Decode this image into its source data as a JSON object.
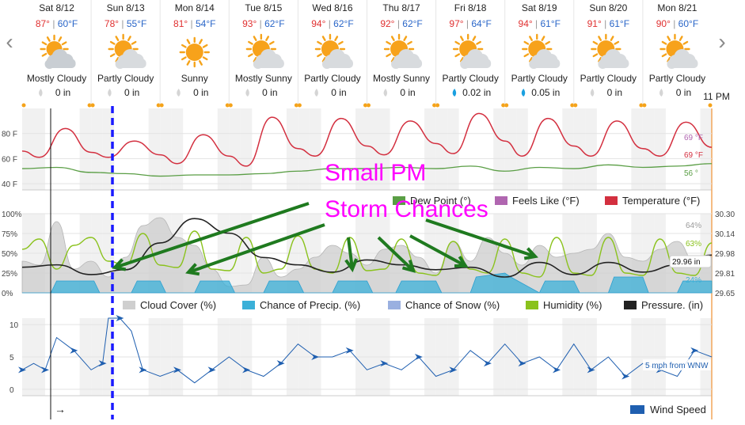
{
  "nav": {
    "prev_glyph": "‹",
    "next_glyph": "›"
  },
  "days": [
    {
      "date": "Sat 8/12",
      "hi": "87°",
      "lo": "60°F",
      "icon": "mostly-cloudy-icon",
      "cond": "Mostly Cloudy",
      "precip": "0 in",
      "rain": false
    },
    {
      "date": "Sun 8/13",
      "hi": "78°",
      "lo": "55°F",
      "icon": "partly-cloudy-icon",
      "cond": "Partly Cloudy",
      "precip": "0 in",
      "rain": false
    },
    {
      "date": "Mon 8/14",
      "hi": "81°",
      "lo": "54°F",
      "icon": "sunny-icon",
      "cond": "Sunny",
      "precip": "0 in",
      "rain": false
    },
    {
      "date": "Tue 8/15",
      "hi": "93°",
      "lo": "62°F",
      "icon": "mostly-sunny-icon",
      "cond": "Mostly Sunny",
      "precip": "0 in",
      "rain": false
    },
    {
      "date": "Wed 8/16",
      "hi": "94°",
      "lo": "62°F",
      "icon": "partly-cloudy-icon",
      "cond": "Partly Cloudy",
      "precip": "0 in",
      "rain": false
    },
    {
      "date": "Thu 8/17",
      "hi": "92°",
      "lo": "62°F",
      "icon": "mostly-sunny-icon",
      "cond": "Mostly Sunny",
      "precip": "0 in",
      "rain": false
    },
    {
      "date": "Fri 8/18",
      "hi": "97°",
      "lo": "64°F",
      "icon": "partly-cloudy-icon",
      "cond": "Partly Cloudy",
      "precip": "0.02 in",
      "rain": true
    },
    {
      "date": "Sat 8/19",
      "hi": "94°",
      "lo": "61°F",
      "icon": "partly-cloudy-icon",
      "cond": "Partly Cloudy",
      "precip": "0.05 in",
      "rain": true
    },
    {
      "date": "Sun 8/20",
      "hi": "91°",
      "lo": "61°F",
      "icon": "partly-cloudy-icon",
      "cond": "Partly Cloudy",
      "precip": "0 in",
      "rain": false
    },
    {
      "date": "Mon 8/21",
      "hi": "90°",
      "lo": "60°F",
      "icon": "partly-cloudy-icon",
      "cond": "Partly Cloudy",
      "precip": "0 in",
      "rain": false
    }
  ],
  "time_label": "11 PM",
  "annotation": {
    "line1": "Small PM",
    "line2": "Storm Chances",
    "color": "#ff00ff",
    "arrow_color": "#1f7a1f"
  },
  "colors": {
    "temp": "#d32f3f",
    "dew": "#5a9e45",
    "feels": "#b066b0",
    "cloud": "#cfcfcf",
    "precip": "#3bb0d8",
    "snow": "#9ab0e0",
    "humidity": "#8ac21c",
    "pressure": "#222222",
    "wind": "#1f5fb0",
    "hi": "#e03030",
    "lo": "#2a66c8",
    "marker": "#1a1aff"
  },
  "chart_data": [
    {
      "type": "line",
      "title": "",
      "yticks": [
        "80 F",
        "60 F",
        "40 F"
      ],
      "ylim": [
        35,
        100
      ],
      "x_unit": "hours from Sat 8/12 00:00",
      "series": [
        {
          "name": "Temperature (°F)",
          "x": [
            0,
            6,
            15,
            24,
            30,
            39,
            48,
            54,
            63,
            72,
            78,
            87,
            96,
            102,
            111,
            120,
            126,
            135,
            144,
            150,
            159,
            168,
            174,
            183,
            192,
            198,
            207,
            216,
            222,
            231,
            240
          ],
          "values": [
            66,
            61,
            84,
            65,
            61,
            74,
            63,
            56,
            79,
            62,
            54,
            93,
            68,
            62,
            92,
            70,
            63,
            90,
            72,
            64,
            96,
            74,
            62,
            92,
            70,
            62,
            90,
            68,
            62,
            89,
            69
          ]
        },
        {
          "name": "Dew Point (°)",
          "x": [
            0,
            12,
            24,
            36,
            48,
            60,
            72,
            84,
            96,
            108,
            120,
            132,
            144,
            156,
            168,
            180,
            192,
            204,
            216,
            228,
            240
          ],
          "values": [
            52,
            53,
            49,
            48,
            46,
            47,
            47,
            48,
            50,
            52,
            52,
            53,
            52,
            54,
            50,
            53,
            52,
            55,
            53,
            54,
            56
          ]
        },
        {
          "name": "Feels Like (°F)",
          "x": [],
          "values": []
        }
      ],
      "end_labels": [
        "69 °F",
        "69 °F",
        "56 °"
      ]
    },
    {
      "type": "area",
      "title": "",
      "yticks": [
        "100%",
        "75%",
        "50%",
        "25%",
        "0%"
      ],
      "right_ticks": [
        "30.30",
        "30.14",
        "29.98",
        "29.81",
        "29.65"
      ],
      "ylim": [
        0,
        100
      ],
      "pressure_lim": [
        29.65,
        30.3
      ],
      "x_unit": "hours from Sat 8/12 00:00",
      "series": [
        {
          "name": "Cloud Cover (%)",
          "x": [
            0,
            6,
            12,
            18,
            24,
            30,
            36,
            42,
            48,
            54,
            60,
            66,
            72,
            78,
            84,
            90,
            96,
            102,
            108,
            114,
            120,
            126,
            132,
            138,
            144,
            150,
            156,
            162,
            168,
            174,
            180,
            186,
            192,
            198,
            204,
            210,
            216,
            222,
            228,
            234,
            240
          ],
          "values": [
            40,
            35,
            90,
            30,
            40,
            20,
            45,
            85,
            95,
            70,
            60,
            30,
            8,
            10,
            45,
            20,
            30,
            45,
            60,
            50,
            35,
            55,
            60,
            45,
            25,
            65,
            40,
            70,
            50,
            35,
            60,
            45,
            50,
            55,
            75,
            45,
            40,
            55,
            65,
            40,
            45
          ]
        },
        {
          "name": "Chance of Precip. (%)",
          "x": [
            0,
            10,
            12,
            25,
            27,
            38,
            40,
            48,
            50,
            60,
            62,
            72,
            74,
            84,
            86,
            96,
            98,
            108,
            110,
            120,
            122,
            130,
            132,
            144,
            146,
            156,
            158,
            168,
            170,
            180,
            182,
            192,
            194,
            204,
            206,
            216,
            218,
            228,
            230,
            240
          ],
          "values": [
            0,
            0,
            15,
            15,
            0,
            0,
            15,
            15,
            0,
            0,
            15,
            15,
            0,
            0,
            15,
            15,
            0,
            0,
            15,
            15,
            0,
            0,
            15,
            15,
            0,
            0,
            20,
            25,
            20,
            0,
            15,
            15,
            0,
            0,
            20,
            20,
            0,
            0,
            15,
            15
          ]
        },
        {
          "name": "Chance of Snow (%)",
          "x": [],
          "values": []
        },
        {
          "name": "Humidity (%)",
          "x": [
            0,
            6,
            12,
            18,
            24,
            30,
            36,
            42,
            48,
            54,
            60,
            66,
            72,
            78,
            84,
            90,
            96,
            102,
            108,
            114,
            120,
            126,
            132,
            138,
            144,
            150,
            156,
            162,
            168,
            174,
            180,
            186,
            192,
            198,
            204,
            210,
            216,
            222,
            228,
            234,
            240
          ],
          "values": [
            55,
            68,
            30,
            60,
            70,
            40,
            35,
            75,
            35,
            32,
            78,
            30,
            28,
            70,
            25,
            30,
            72,
            30,
            25,
            70,
            28,
            30,
            68,
            25,
            22,
            65,
            30,
            25,
            68,
            25,
            20,
            70,
            25,
            22,
            70,
            25,
            22,
            68,
            25,
            22,
            63
          ]
        },
        {
          "name": "Pressure. (in)",
          "x": [
            0,
            12,
            24,
            36,
            48,
            60,
            72,
            84,
            96,
            108,
            120,
            132,
            144,
            156,
            168,
            180,
            192,
            204,
            216,
            228,
            240
          ],
          "values": [
            29.86,
            29.88,
            29.8,
            29.84,
            30.06,
            30.26,
            30.14,
            29.94,
            29.88,
            29.82,
            29.92,
            29.88,
            29.84,
            29.86,
            29.78,
            29.9,
            29.8,
            29.9,
            29.82,
            29.88,
            29.96
          ]
        }
      ],
      "end_labels": [
        "64%",
        "63%",
        "29.96 in",
        "24%"
      ]
    },
    {
      "type": "line",
      "title": "",
      "yticks": [
        "10",
        "5",
        "0"
      ],
      "ylim": [
        -1,
        11
      ],
      "x_unit": "hours from Sat 8/12 00:00",
      "series": [
        {
          "name": "Wind Speed",
          "x": [
            0,
            4,
            8,
            12,
            18,
            24,
            28,
            30,
            34,
            38,
            42,
            48,
            54,
            60,
            66,
            72,
            78,
            84,
            90,
            96,
            102,
            108,
            114,
            120,
            126,
            132,
            138,
            144,
            150,
            156,
            162,
            168,
            174,
            180,
            186,
            192,
            198,
            204,
            210,
            216,
            222,
            228,
            234,
            240
          ],
          "values": [
            3,
            4,
            3,
            8,
            6,
            3,
            4,
            11,
            11,
            9,
            3,
            2,
            3,
            1,
            3,
            5,
            3,
            2,
            4,
            7,
            5,
            5,
            6,
            3,
            4,
            3,
            5,
            2,
            3,
            6,
            4,
            7,
            4,
            5,
            3,
            7,
            3,
            5,
            2,
            4,
            3,
            2,
            6,
            5
          ]
        }
      ],
      "end_labels": [
        "5 mph from WNW"
      ]
    }
  ]
}
